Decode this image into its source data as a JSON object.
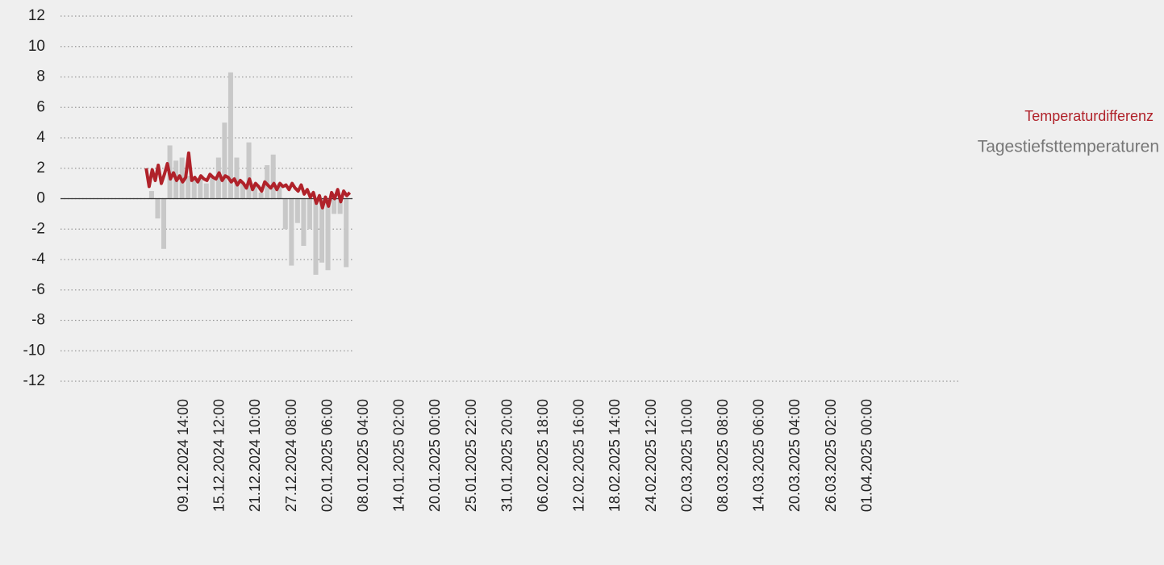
{
  "chart_data": {
    "type": "bar-line",
    "ylim": [
      -12,
      12
    ],
    "yticks": [
      -12,
      -10,
      -8,
      -6,
      -4,
      -2,
      0,
      2,
      4,
      6,
      8,
      10,
      12
    ],
    "xlim": [
      "19.11.2024 10:00",
      "16.04.2025 08:00"
    ],
    "xticks": [
      "09.12.2024 14:00",
      "15.12.2024 12:00",
      "21.12.2024 10:00",
      "27.12.2024 08:00",
      "02.01.2025 06:00",
      "08.01.2025 04:00",
      "14.01.2025 02:00",
      "20.01.2025 00:00",
      "25.01.2025 22:00",
      "31.01.2025 20:00",
      "06.02.2025 18:00",
      "12.02.2025 16:00",
      "18.02.2025 14:00",
      "24.02.2025 12:00",
      "02.03.2025 10:00",
      "08.03.2025 08:00",
      "14.03.2025 06:00",
      "20.03.2025 04:00",
      "26.03.2025 02:00",
      "01.04.2025 00:00"
    ],
    "grid": true,
    "legend": "right",
    "series": [
      {
        "name": "Tagestiefsttemperaturen",
        "color": "#c8c8c8",
        "kind": "bar",
        "x": [
          "04.12.2024 00:00",
          "05.12.2024 00:00",
          "06.12.2024 00:00",
          "07.12.2024 00:00",
          "08.12.2024 00:00",
          "09.12.2024 00:00",
          "10.12.2024 00:00",
          "11.12.2024 00:00",
          "12.12.2024 00:00",
          "13.12.2024 00:00",
          "14.12.2024 00:00",
          "15.12.2024 00:00",
          "16.12.2024 00:00",
          "17.12.2024 00:00",
          "18.12.2024 00:00",
          "19.12.2024 00:00",
          "20.12.2024 00:00",
          "21.12.2024 00:00",
          "22.12.2024 00:00",
          "23.12.2024 00:00",
          "24.12.2024 00:00",
          "25.12.2024 00:00",
          "26.12.2024 00:00",
          "27.12.2024 00:00",
          "28.12.2024 00:00",
          "29.12.2024 00:00",
          "30.12.2024 00:00",
          "31.12.2024 00:00",
          "01.01.2025 00:00",
          "02.01.2025 00:00",
          "03.01.2025 00:00",
          "04.01.2025 00:00",
          "05.01.2025 00:00"
        ],
        "values": [
          0.5,
          -1.3,
          -3.3,
          3.5,
          2.5,
          2.7,
          1.5,
          1.2,
          1.4,
          1.0,
          1.5,
          2.7,
          5.0,
          8.3,
          2.7,
          1.0,
          3.7,
          1.0,
          0.4,
          2.2,
          2.9,
          1.0,
          -2.0,
          -4.4,
          -1.6,
          -3.1,
          -2.0,
          -5.0,
          -4.2,
          -4.7,
          -1.0,
          -1.0,
          -4.5
        ]
      },
      {
        "name": "Temperaturdifferenz",
        "color": "#b0222a",
        "kind": "line",
        "x": [
          "03.12.2024 12:00",
          "04.12.2024 00:00",
          "04.12.2024 12:00",
          "05.12.2024 00:00",
          "05.12.2024 12:00",
          "06.12.2024 00:00",
          "06.12.2024 12:00",
          "07.12.2024 00:00",
          "07.12.2024 12:00",
          "08.12.2024 00:00",
          "08.12.2024 12:00",
          "09.12.2024 00:00",
          "09.12.2024 12:00",
          "10.12.2024 00:00",
          "10.12.2024 12:00",
          "11.12.2024 00:00",
          "11.12.2024 12:00",
          "12.12.2024 00:00",
          "12.12.2024 12:00",
          "13.12.2024 00:00",
          "13.12.2024 12:00",
          "14.12.2024 00:00",
          "14.12.2024 12:00",
          "15.12.2024 00:00",
          "15.12.2024 12:00",
          "16.12.2024 00:00",
          "16.12.2024 12:00",
          "17.12.2024 00:00",
          "17.12.2024 12:00",
          "18.12.2024 00:00",
          "18.12.2024 12:00",
          "19.12.2024 00:00",
          "19.12.2024 12:00",
          "20.12.2024 00:00",
          "20.12.2024 12:00",
          "21.12.2024 00:00",
          "21.12.2024 12:00",
          "22.12.2024 00:00",
          "22.12.2024 12:00",
          "23.12.2024 00:00",
          "23.12.2024 12:00",
          "24.12.2024 00:00",
          "24.12.2024 12:00",
          "25.12.2024 00:00",
          "25.12.2024 12:00",
          "26.12.2024 00:00",
          "26.12.2024 12:00",
          "27.12.2024 00:00",
          "27.12.2024 12:00",
          "28.12.2024 00:00",
          "28.12.2024 12:00",
          "29.12.2024 00:00",
          "29.12.2024 12:00",
          "30.12.2024 00:00",
          "30.12.2024 12:00",
          "31.12.2024 00:00",
          "31.12.2024 12:00",
          "01.01.2025 00:00",
          "01.01.2025 12:00",
          "02.01.2025 00:00",
          "02.01.2025 12:00",
          "03.01.2025 00:00",
          "03.01.2025 12:00",
          "04.01.2025 00:00",
          "04.01.2025 12:00",
          "05.01.2025 00:00",
          "05.01.2025 12:00",
          "06.01.2025 00:00"
        ],
        "values": [
          2.0,
          0.8,
          1.9,
          1.2,
          2.2,
          1.0,
          1.6,
          2.3,
          1.3,
          1.7,
          1.2,
          1.5,
          1.1,
          1.4,
          3.0,
          1.2,
          1.4,
          1.1,
          1.5,
          1.3,
          1.2,
          1.6,
          1.4,
          1.3,
          1.7,
          1.2,
          1.5,
          1.4,
          1.1,
          1.3,
          0.9,
          1.2,
          1.0,
          0.7,
          1.3,
          0.6,
          1.0,
          0.8,
          0.5,
          1.1,
          0.9,
          0.7,
          1.0,
          0.6,
          1.0,
          0.8,
          0.9,
          0.6,
          1.0,
          0.7,
          0.5,
          0.9,
          0.3,
          0.6,
          0.1,
          0.4,
          -0.3,
          0.2,
          -0.6,
          0.1,
          -0.5,
          0.4,
          0.0,
          0.6,
          -0.2,
          0.5,
          0.2,
          0.4
        ]
      }
    ]
  }
}
